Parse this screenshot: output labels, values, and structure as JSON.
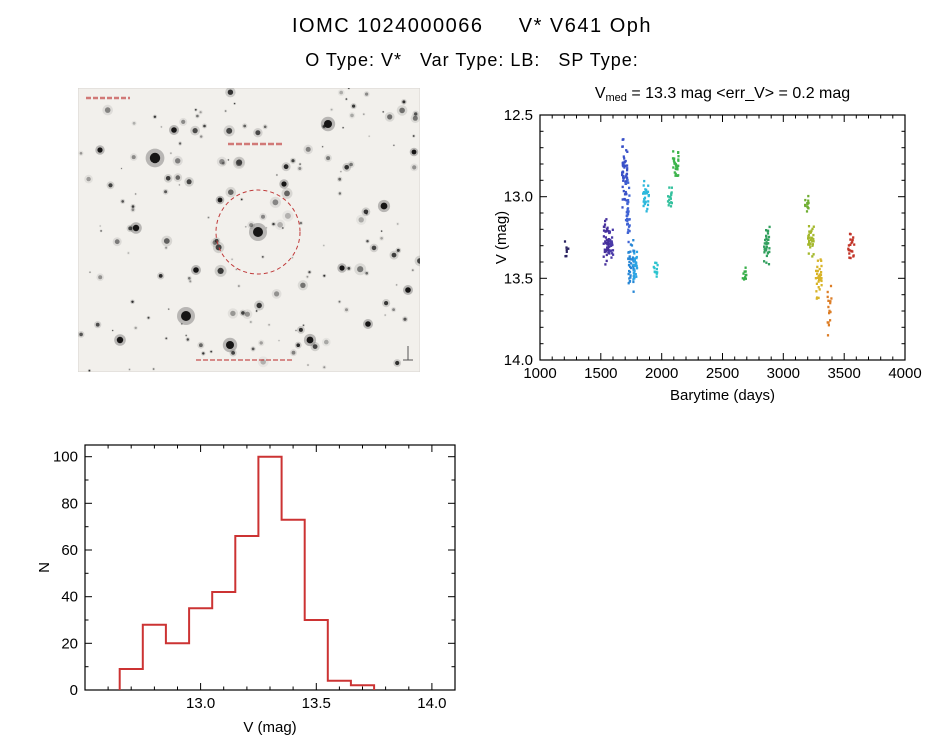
{
  "page": {
    "title": "IOMC 1024000066     V* V641 Oph",
    "subtitle": "O Type: V*   Var Type: LB:   SP Type:"
  },
  "finding_chart": {
    "kind": "star-field finding chart",
    "background": "#f2f0ec",
    "target_marker": {
      "shape": "dashed-circle",
      "color": "#c03a3a"
    }
  },
  "chart_data": [
    {
      "id": "light_curve",
      "type": "scatter",
      "title": "V_med = 13.3 mag <err_V> = 0.2 mag",
      "title_parts": {
        "main": "V",
        "sub": "med",
        "rest": " = 13.3 mag <err_V> = 0.2 mag"
      },
      "xlabel": "Barytime (days)",
      "ylabel": "V (mag)",
      "xlim": [
        1000,
        4000
      ],
      "ylim": [
        12.5,
        14.0
      ],
      "y_inverted": true,
      "xticks": [
        1000,
        1500,
        2000,
        2500,
        3000,
        3500,
        4000
      ],
      "yticks": [
        12.5,
        13.0,
        13.5,
        14.0
      ],
      "x_minor_step": 100,
      "y_minor_step": 0.1,
      "grid": false,
      "legend": "none",
      "clusters": [
        {
          "t": 1220,
          "v": [
            13.26,
            13.4
          ],
          "n": 7,
          "jitter": 2,
          "color": "#2b2361"
        },
        {
          "t": 1548,
          "v": [
            13.1,
            13.5
          ],
          "n": 42,
          "jitter": 3,
          "color": "#46309c"
        },
        {
          "t": 1585,
          "v": [
            13.18,
            13.42
          ],
          "n": 22,
          "jitter": 2,
          "color": "#4a3aa8"
        },
        {
          "t": 1695,
          "v": [
            12.62,
            13.08
          ],
          "n": 55,
          "jitter": 3,
          "color": "#3950c8"
        },
        {
          "t": 1722,
          "v": [
            12.88,
            13.3
          ],
          "n": 32,
          "jitter": 2,
          "color": "#3f63d4"
        },
        {
          "t": 1750,
          "v": [
            13.24,
            13.6
          ],
          "n": 40,
          "jitter": 3,
          "color": "#2787d6"
        },
        {
          "t": 1782,
          "v": [
            13.3,
            13.56
          ],
          "n": 26,
          "jitter": 2,
          "color": "#2ba4e4"
        },
        {
          "t": 1872,
          "v": [
            12.88,
            13.12
          ],
          "n": 28,
          "jitter": 3,
          "color": "#2db8dc"
        },
        {
          "t": 1952,
          "v": [
            13.36,
            13.5
          ],
          "n": 12,
          "jitter": 2,
          "color": "#2cc4cf"
        },
        {
          "t": 2068,
          "v": [
            12.94,
            13.06
          ],
          "n": 16,
          "jitter": 2,
          "color": "#35c19e"
        },
        {
          "t": 2118,
          "v": [
            12.7,
            12.92
          ],
          "n": 30,
          "jitter": 3,
          "color": "#3cb44b"
        },
        {
          "t": 2680,
          "v": [
            13.4,
            13.52
          ],
          "n": 10,
          "jitter": 2,
          "color": "#37ae49"
        },
        {
          "t": 2865,
          "v": [
            13.16,
            13.44
          ],
          "n": 34,
          "jitter": 3,
          "color": "#33a05f"
        },
        {
          "t": 3192,
          "v": [
            12.96,
            13.12
          ],
          "n": 14,
          "jitter": 2,
          "color": "#6fae32"
        },
        {
          "t": 3228,
          "v": [
            13.14,
            13.38
          ],
          "n": 30,
          "jitter": 3,
          "color": "#a4b82c"
        },
        {
          "t": 3292,
          "v": [
            13.36,
            13.64
          ],
          "n": 34,
          "jitter": 3,
          "color": "#d8b429"
        },
        {
          "t": 3380,
          "v": [
            13.52,
            13.9
          ],
          "n": 16,
          "jitter": 2,
          "color": "#dd7e27"
        },
        {
          "t": 3558,
          "v": [
            13.18,
            13.4
          ],
          "n": 20,
          "jitter": 3,
          "color": "#c23428"
        }
      ]
    },
    {
      "id": "histogram",
      "type": "bar",
      "style": "step-outline",
      "xlabel": "V (mag)",
      "ylabel": "N",
      "xlim": [
        12.5,
        14.1
      ],
      "ylim": [
        0,
        105
      ],
      "xticks": [
        13.0,
        13.5,
        14.0
      ],
      "yticks": [
        0,
        20,
        40,
        60,
        80,
        100
      ],
      "x_minor_step": 0.1,
      "y_minor_step": 10,
      "bin_start": 12.65,
      "bin_width": 0.1,
      "counts": [
        9,
        28,
        20,
        35,
        42,
        66,
        100,
        73,
        30,
        4,
        2
      ],
      "color": "#cc3333",
      "grid": false
    }
  ]
}
